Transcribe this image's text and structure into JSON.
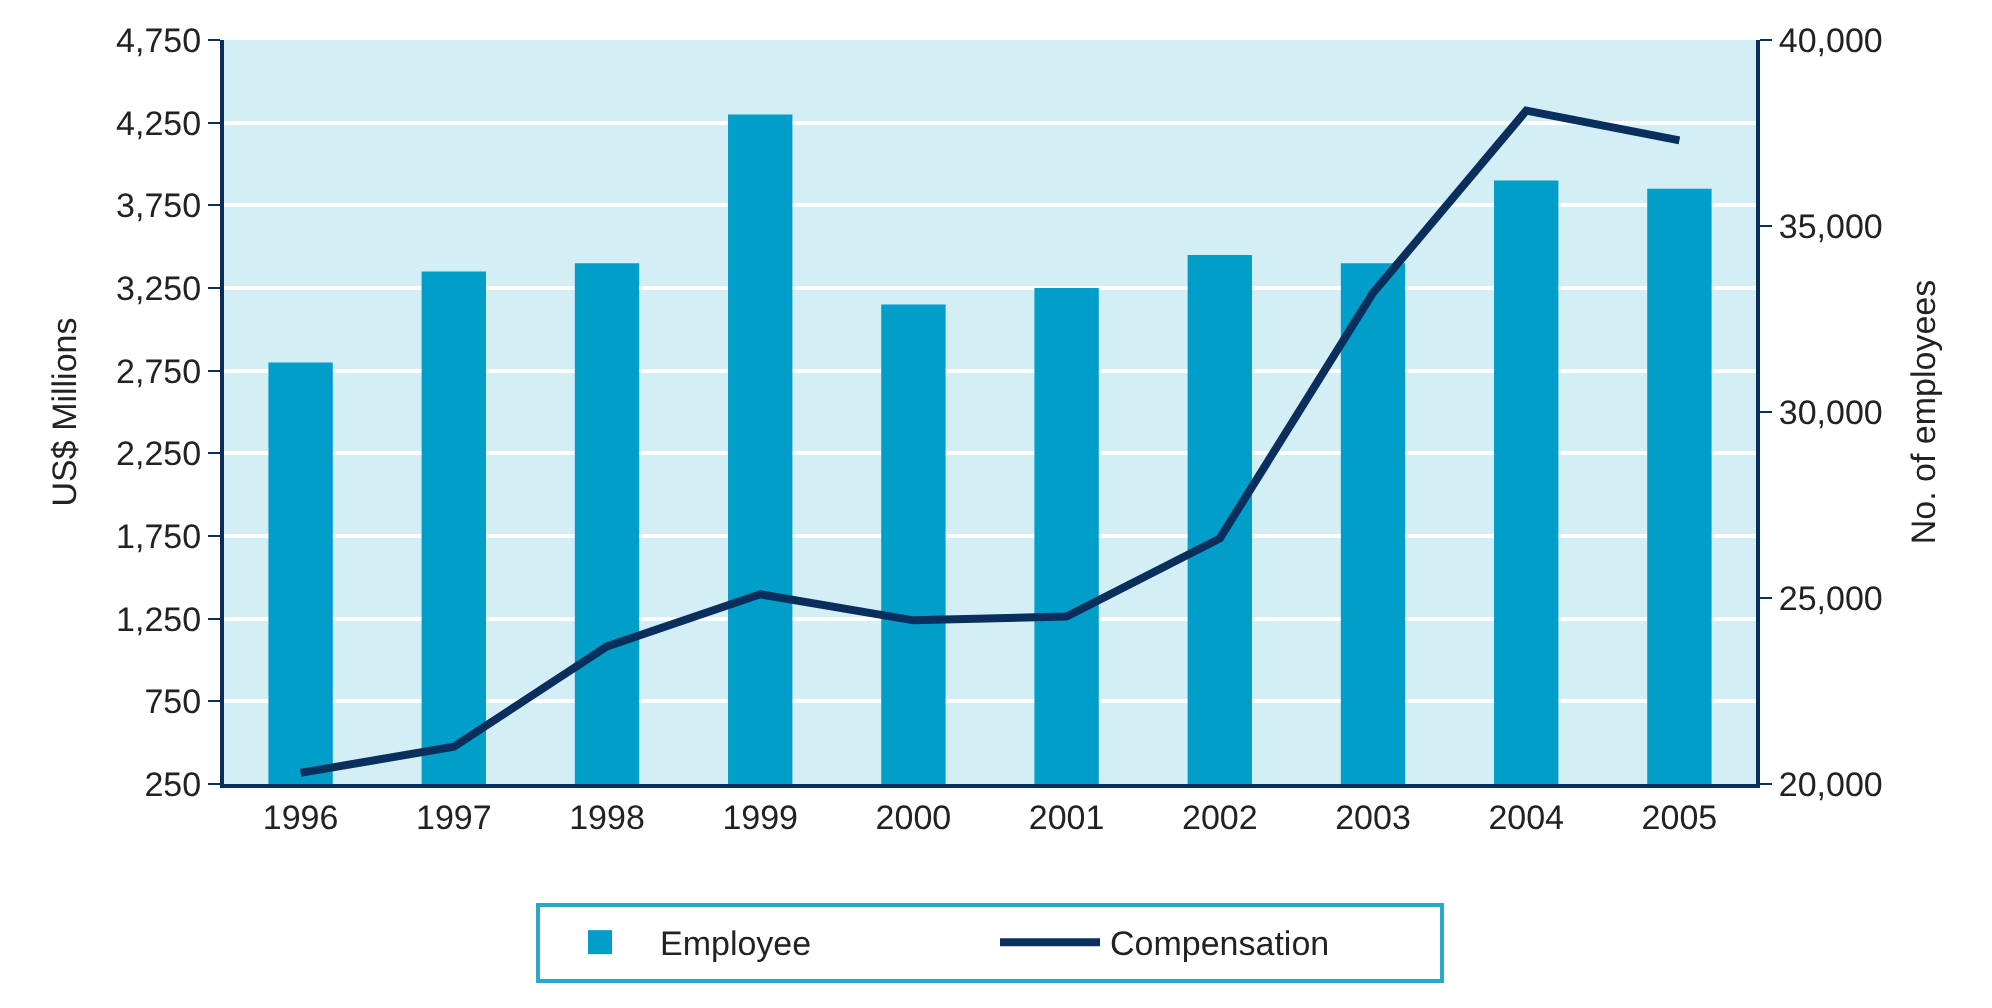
{
  "chart_data": {
    "type": "bar",
    "ylabel": "US$ Millions",
    "y2label": "No. of employees",
    "categories": [
      "1996",
      "1997",
      "1998",
      "1999",
      "2000",
      "2001",
      "2002",
      "2003",
      "2004",
      "2005"
    ],
    "series": [
      {
        "name": "Employee",
        "color": "#009ec9",
        "values": [
          2800,
          3350,
          3400,
          4300,
          3150,
          3250,
          3450,
          3400,
          3900,
          3850
        ]
      },
      {
        "name": "Compensation",
        "type": "line",
        "axis": "y2",
        "color": "#0a2f5c",
        "values": [
          20300,
          21000,
          23700,
          25100,
          24400,
          24500,
          26600,
          33200,
          38100,
          37300
        ]
      }
    ],
    "ylim": [
      250,
      4750
    ],
    "yticks": [
      {
        "value": 250,
        "label": "250"
      },
      {
        "value": 750,
        "label": "750"
      },
      {
        "value": 1250,
        "label": "1,250"
      },
      {
        "value": 1750,
        "label": "1,750"
      },
      {
        "value": 2250,
        "label": "2,250"
      },
      {
        "value": 2750,
        "label": "2,750"
      },
      {
        "value": 3250,
        "label": "3,250"
      },
      {
        "value": 3750,
        "label": "3,750"
      },
      {
        "value": 4250,
        "label": "4,250"
      },
      {
        "value": 4750,
        "label": "4,750"
      }
    ],
    "y2lim": [
      20000,
      40000
    ],
    "y2ticks": [
      {
        "value": 20000,
        "label": "20,000"
      },
      {
        "value": 25000,
        "label": "25,000"
      },
      {
        "value": 30000,
        "label": "30,000"
      },
      {
        "value": 35000,
        "label": "35,000"
      },
      {
        "value": 40000,
        "label": "40,000"
      }
    ],
    "grid": "y",
    "legend": "bottom",
    "marker": "none",
    "line_style": "solid"
  }
}
